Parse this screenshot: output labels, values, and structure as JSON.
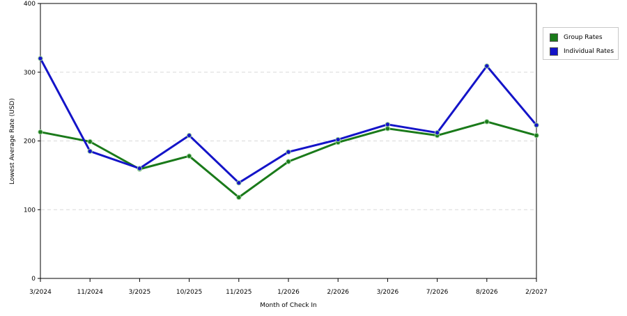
{
  "chart_data": {
    "type": "line",
    "title": "",
    "xlabel": "Month of Check In",
    "ylabel": "Lowest Average Rate (USD)",
    "categories": [
      "3/2024",
      "11/2024",
      "3/2025",
      "10/2025",
      "11/2025",
      "1/2026",
      "2/2026",
      "3/2026",
      "7/2026",
      "8/2026",
      "2/2027"
    ],
    "ylim": [
      0,
      400
    ],
    "yticks": [
      "0",
      "100",
      "200",
      "300",
      "400"
    ],
    "grid": true,
    "legend_position": "right",
    "series": [
      {
        "name": "Group Rates",
        "color": "#1a7a1a",
        "values": [
          213,
          199,
          159,
          178,
          118,
          170,
          198,
          218,
          208,
          228,
          208
        ]
      },
      {
        "name": "Individual Rates",
        "color": "#1414c8",
        "values": [
          320,
          185,
          160,
          208,
          139,
          184,
          202,
          224,
          212,
          309,
          223
        ]
      }
    ]
  }
}
